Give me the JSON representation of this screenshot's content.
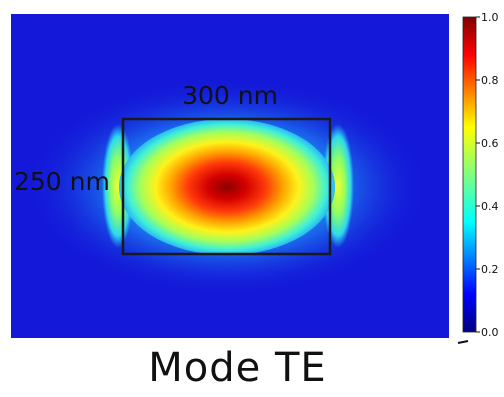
{
  "figure": {
    "width_label": "300 nm",
    "height_label": "250 nm",
    "caption": "Mode TE"
  },
  "colorbar": {
    "ticks": [
      "1.0",
      "0.8",
      "0.6",
      "0.4",
      "0.2",
      "0.0"
    ],
    "min": 0.0,
    "max": 1.0,
    "colormap": "jet"
  },
  "colors": {
    "background_field": "#1419d9",
    "outline": "#1a1a1a"
  }
}
